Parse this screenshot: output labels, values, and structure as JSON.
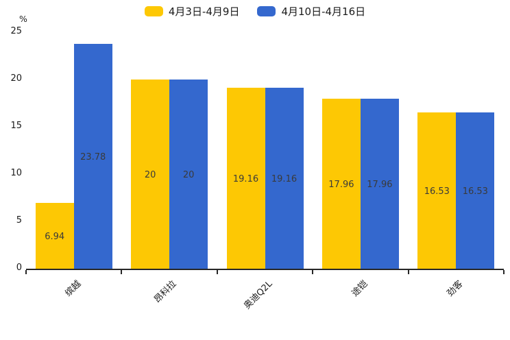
{
  "chart_data": {
    "type": "bar",
    "title": "",
    "xlabel": "",
    "ylabel": "%",
    "categories": [
      "缤越",
      "昂科拉",
      "奥迪Q2L",
      "途铠",
      "劲客"
    ],
    "series": [
      {
        "name": "4月3日-4月9日",
        "color": "#FDC804",
        "values": [
          6.94,
          20,
          19.16,
          17.96,
          16.53
        ]
      },
      {
        "name": "4月10日-4月16日",
        "color": "#3468CE",
        "values": [
          23.78,
          20,
          19.16,
          17.96,
          16.53
        ]
      }
    ],
    "value_labels": [
      "6.94",
      "20",
      "19.16",
      "17.96",
      "16.53",
      "23.78",
      "20",
      "19.16",
      "17.96",
      "16.53"
    ],
    "ylim": [
      0,
      25
    ],
    "yticks": [
      0,
      5,
      10,
      15,
      20,
      25
    ],
    "grid": false,
    "legend_position": "top-center",
    "axis_color": "#262626",
    "value_label_color": "#3a3a3a"
  }
}
